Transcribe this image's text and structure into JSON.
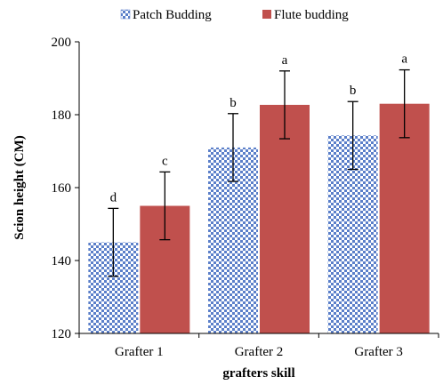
{
  "chart_data": {
    "type": "bar",
    "categories": [
      "Grafter 1",
      "Grafter 2",
      "Grafter 3"
    ],
    "series": [
      {
        "name": "Patch Budding",
        "values": [
          145,
          171,
          174.3
        ],
        "errors": [
          9.3,
          9.3,
          9.3
        ],
        "letters": [
          "d",
          "b",
          "b"
        ],
        "color": "#5b7fc9",
        "pattern": "checker"
      },
      {
        "name": "Flute budding",
        "values": [
          155,
          182.7,
          183
        ],
        "errors": [
          9.3,
          9.3,
          9.3
        ],
        "letters": [
          "c",
          "a",
          "a"
        ],
        "color": "#c0504d",
        "pattern": "solid"
      }
    ],
    "xlabel": "grafters skill",
    "ylabel": "Scion height (CM)",
    "ylim": [
      120,
      200
    ],
    "yticks": [
      120,
      140,
      160,
      180,
      200
    ],
    "grid": false,
    "legend_position": "top"
  }
}
